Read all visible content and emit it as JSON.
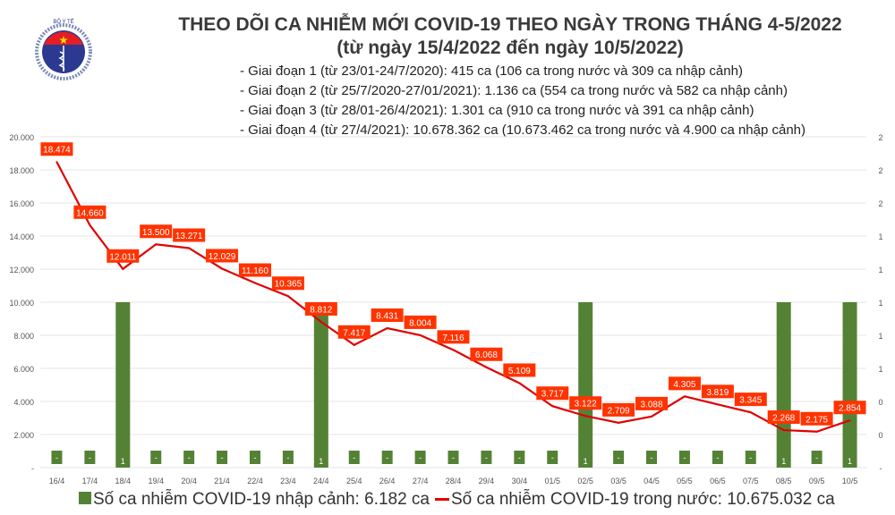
{
  "logo": {
    "top_text": "BỘ Y TẾ",
    "bottom_text": "MINISTRY OF HEALTH"
  },
  "header": {
    "title": "THEO DÕI CA NHIỄM MỚI COVID-19 THEO NGÀY TRONG THÁNG 4-5/2022",
    "subtitle": "(từ ngày 15/4/2022 đến ngày 10/5/2022)",
    "notes": [
      "- Giai đoạn 1 (từ 23/01-24/7/2020): 415 ca (106 ca trong nước và 309 ca nhập cảnh)",
      "- Giai đoạn 2 (từ 25/7/2020-27/01/2021): 1.136 ca (554 ca trong nước và 582 ca nhập cảnh)",
      "- Giai đoạn 3 (từ 28/01-26/4/2021): 1.301 ca (910 ca trong nước và 391 ca nhập cảnh)",
      "- Giai đoạn 4 (từ 27/4/2021): 10.678.362 ca (10.673.462 ca trong nước và 4.900 ca nhập cảnh)"
    ]
  },
  "chart_data": {
    "type": "bar+line",
    "categories": [
      "16/4",
      "17/4",
      "18/4",
      "19/4",
      "20/4",
      "21/4",
      "22/4",
      "23/4",
      "24/4",
      "25/4",
      "26/4",
      "27/4",
      "28/4",
      "29/4",
      "30/4",
      "01/5",
      "02/5",
      "03/5",
      "04/5",
      "05/5",
      "06/5",
      "07/5",
      "08/5",
      "09/5",
      "10/5"
    ],
    "series": [
      {
        "name": "Số ca nhiễm COVID-19 nhập cảnh: 6.182 ca",
        "type": "bar",
        "axis": "right",
        "color": "#548235",
        "values": [
          0,
          0,
          1,
          0,
          0,
          0,
          0,
          0,
          1,
          0,
          0,
          0,
          0,
          0,
          0,
          0,
          1,
          0,
          0,
          0,
          0,
          0,
          1,
          0,
          1
        ],
        "labels": [
          "-",
          "-",
          "1",
          "-",
          "-",
          "-",
          "-",
          "-",
          "1",
          "-",
          "-",
          "-",
          "-",
          "-",
          "-",
          "-",
          "1",
          "-",
          "-",
          "-",
          "-",
          "-",
          "1",
          "-",
          "1"
        ]
      },
      {
        "name": "Số ca nhiễm COVID-19 trong nước: 10.675.032 ca",
        "type": "line",
        "axis": "left",
        "color": "#e00000",
        "values": [
          18474,
          14660,
          12011,
          13500,
          13271,
          12029,
          11160,
          10365,
          8812,
          7417,
          8431,
          8004,
          7116,
          6068,
          5109,
          3717,
          3122,
          2709,
          3088,
          4305,
          3819,
          3345,
          2268,
          2175,
          2854
        ],
        "labels": [
          "18.474",
          "14.660",
          "12.011",
          "13.500",
          "13.271",
          "12.029",
          "11.160",
          "10.365",
          "8.812",
          "7.417",
          "8.431",
          "8.004",
          "7.116",
          "6.068",
          "5.109",
          "3.717",
          "3.122",
          "2.709",
          "3.088",
          "4.305",
          "3.819",
          "3.345",
          "2.268",
          "2.175",
          "2.854"
        ]
      }
    ],
    "left_ticks": [
      "-",
      "2.000",
      "4.000",
      "6.000",
      "8.000",
      "10.000",
      "12.000",
      "14.000",
      "16.000",
      "18.000",
      "20.000"
    ],
    "right_ticks": [
      "-",
      "0",
      "0",
      "1",
      "1",
      "1",
      "1",
      "1",
      "2",
      "2",
      "2"
    ],
    "ylim_left": [
      0,
      20000
    ],
    "ylim_right": [
      0,
      2
    ],
    "label_color": "#ff3300",
    "grid": true,
    "legend": "bottom"
  }
}
